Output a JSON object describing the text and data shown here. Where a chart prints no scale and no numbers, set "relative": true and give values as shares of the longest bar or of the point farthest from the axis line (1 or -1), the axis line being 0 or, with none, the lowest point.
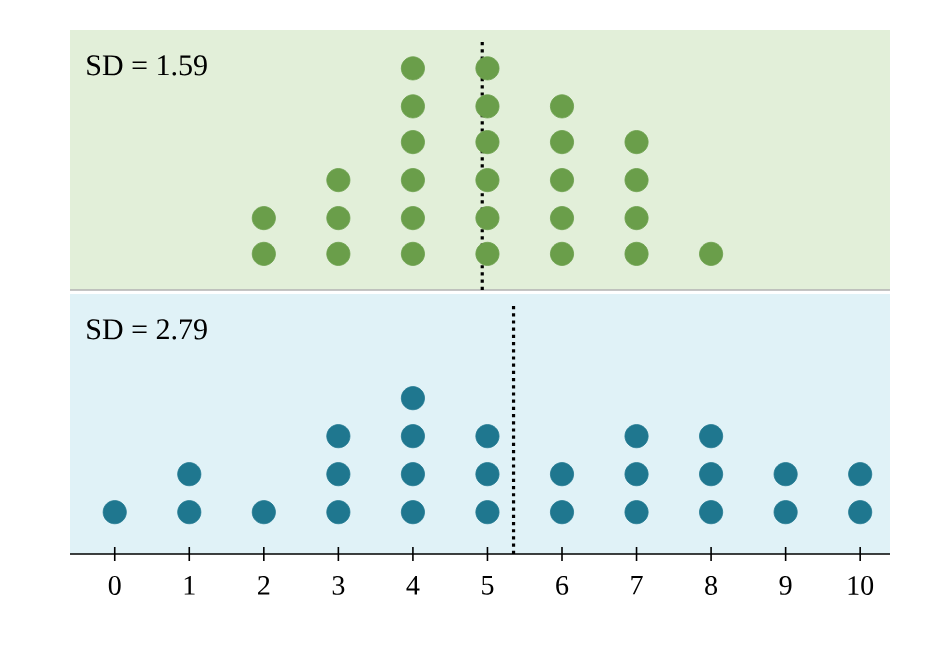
{
  "chart_data": [
    {
      "type": "scatter",
      "relative": true,
      "annotations": [
        "SD = 1.59"
      ],
      "xlim": [
        -0.6,
        10.4
      ],
      "xticks": [
        0,
        1,
        2,
        3,
        4,
        5,
        6,
        7,
        8,
        9,
        10
      ],
      "tick_labels": false,
      "marker": "circle",
      "series": [
        {
          "color": "#6a9e4a",
          "x": [
            2,
            2,
            3,
            3,
            3,
            4,
            4,
            4,
            4,
            4,
            4,
            5,
            5,
            5,
            5,
            5,
            5,
            6,
            6,
            6,
            6,
            6,
            7,
            7,
            7,
            7,
            8
          ],
          "values": [
            0.17,
            0.33,
            0.17,
            0.33,
            0.5,
            0.17,
            0.33,
            0.5,
            0.67,
            0.83,
            1,
            0.17,
            0.33,
            0.5,
            0.67,
            0.83,
            1,
            0.17,
            0.33,
            0.5,
            0.67,
            0.83,
            0.17,
            0.33,
            0.5,
            0.67,
            0.17
          ]
        }
      ],
      "ref_lines": [
        {
          "axis": "x",
          "value": 4.93,
          "line_style": "dotted",
          "color": "#000000"
        }
      ]
    },
    {
      "type": "scatter",
      "relative": true,
      "annotations": [
        "SD = 2.79"
      ],
      "xlim": [
        -0.6,
        10.4
      ],
      "xticks": [
        0,
        1,
        2,
        3,
        4,
        5,
        6,
        7,
        8,
        9,
        10
      ],
      "tick_labels": "x",
      "marker": "circle",
      "series": [
        {
          "color": "#1f778f",
          "x": [
            0,
            1,
            1,
            2,
            3,
            3,
            3,
            4,
            4,
            4,
            4,
            5,
            5,
            5,
            6,
            6,
            7,
            7,
            7,
            8,
            8,
            8,
            9,
            9,
            10,
            10
          ],
          "values": [
            0.25,
            0.25,
            0.5,
            0.25,
            0.25,
            0.5,
            0.75,
            0.25,
            0.5,
            0.75,
            1,
            0.25,
            0.5,
            0.75,
            0.25,
            0.5,
            0.25,
            0.5,
            0.75,
            0.25,
            0.5,
            0.75,
            0.25,
            0.5,
            0.25,
            0.5
          ]
        }
      ],
      "ref_lines": [
        {
          "axis": "x",
          "value": 5.35,
          "line_style": "dotted",
          "color": "#000000"
        }
      ]
    }
  ]
}
